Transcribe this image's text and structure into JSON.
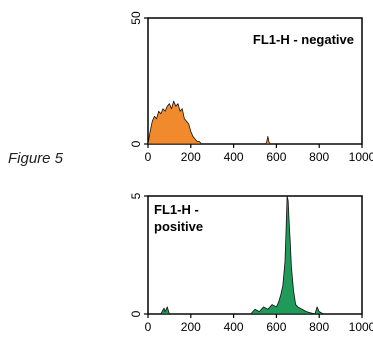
{
  "figure_label": "Figure 5",
  "chart_data": [
    {
      "type": "area",
      "title": "FL1-H - negative",
      "title_lines": [
        "FL1-H - negative"
      ],
      "title_position": "top-right",
      "fill_color": "#f08a2c",
      "xlim": [
        0,
        1000
      ],
      "ylim": [
        0,
        50
      ],
      "x_ticks": [
        0,
        200,
        400,
        600,
        800,
        1000
      ],
      "y_ticks": [
        0,
        50
      ],
      "x": [
        0,
        10,
        20,
        30,
        40,
        50,
        60,
        70,
        80,
        90,
        100,
        110,
        120,
        130,
        140,
        150,
        160,
        170,
        180,
        190,
        200,
        210,
        220,
        230,
        240,
        250,
        260,
        550,
        555,
        560,
        565,
        570,
        1000
      ],
      "y": [
        0,
        5,
        9,
        11,
        10,
        13,
        12,
        14,
        13,
        15,
        16,
        14,
        17,
        15,
        16,
        13,
        14,
        10,
        9,
        8,
        5,
        3,
        2,
        1,
        1,
        0,
        0,
        0,
        1,
        3,
        1,
        0,
        0
      ]
    },
    {
      "type": "area",
      "title": "FL1-H - positive",
      "title_lines": [
        "FL1-H -",
        "positive"
      ],
      "title_position": "top-left",
      "fill_color": "#1f9a5a",
      "xlim": [
        0,
        1000
      ],
      "ylim": [
        0,
        5
      ],
      "x_ticks": [
        0,
        200,
        400,
        600,
        800,
        1000
      ],
      "y_ticks": [
        0,
        5
      ],
      "x": [
        0,
        60,
        75,
        80,
        90,
        100,
        150,
        300,
        480,
        500,
        520,
        540,
        560,
        580,
        600,
        610,
        620,
        630,
        640,
        645,
        650,
        655,
        660,
        665,
        670,
        680,
        690,
        700,
        720,
        740,
        780,
        790,
        800,
        820,
        850,
        1000
      ],
      "y": [
        0,
        0,
        0.25,
        0.1,
        0.3,
        0,
        0,
        0,
        0,
        0.2,
        0.1,
        0.3,
        0.2,
        0.4,
        0.3,
        0.5,
        0.8,
        1.2,
        2.2,
        3.5,
        5.0,
        4.8,
        3.8,
        3.0,
        2.0,
        1.0,
        0.4,
        0.3,
        0.2,
        0.1,
        0,
        0.3,
        0.1,
        0,
        0,
        0
      ]
    }
  ]
}
